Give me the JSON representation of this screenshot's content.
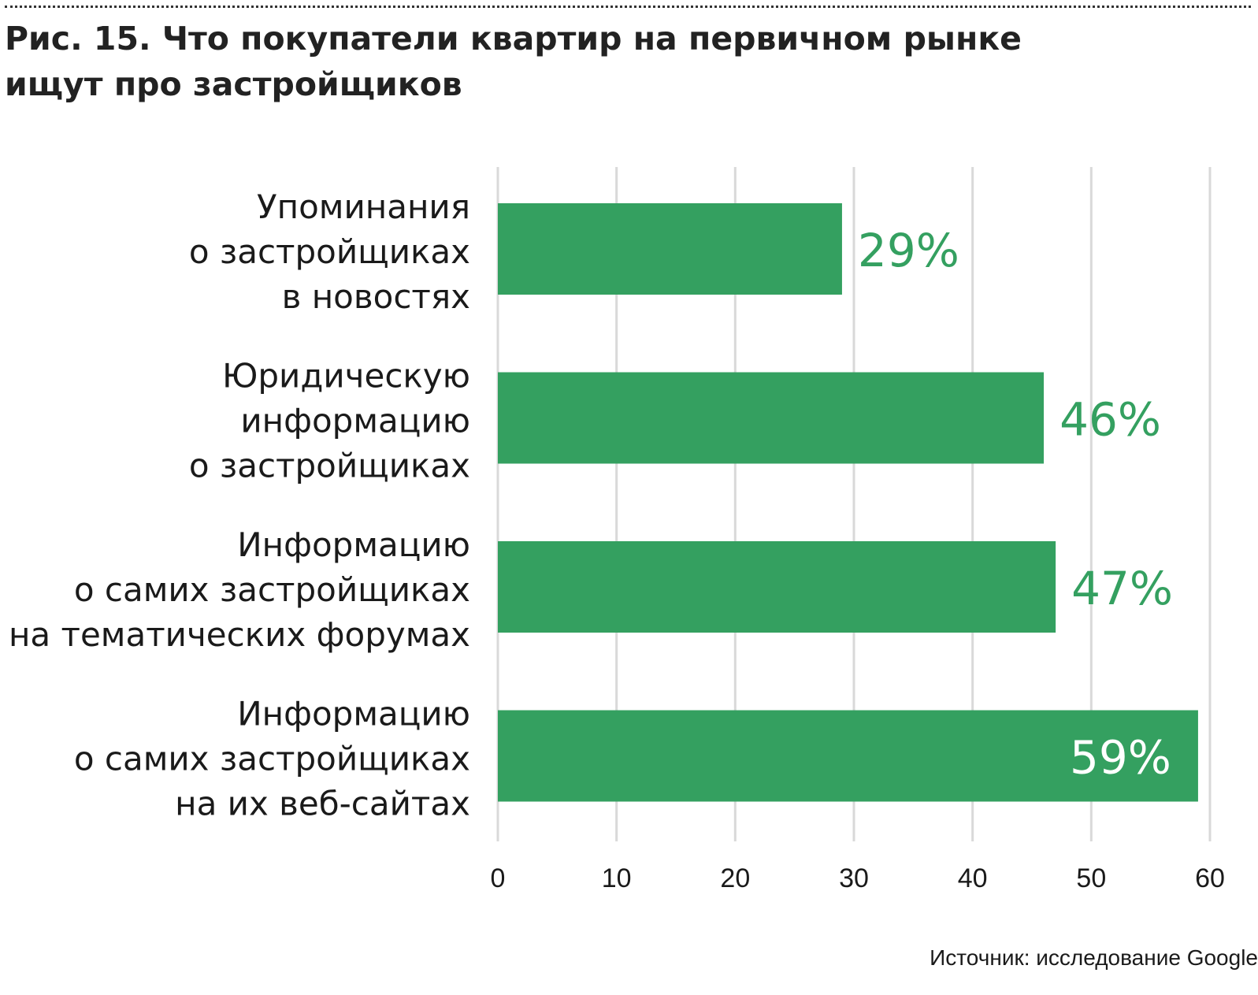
{
  "title_lines": [
    "Рис. 15. Что покупатели квартир на первичном рынке",
    "ищут про застройщиков"
  ],
  "source": "Источник: исследование Google",
  "colors": {
    "bar": "#34a060",
    "grid": "#d9d9d9",
    "axis_text": "#1a1a1a",
    "label_text": "#1a1a1a",
    "value_outside": "#34a060",
    "value_inside": "#ffffff"
  },
  "chart_data": {
    "type": "bar",
    "orientation": "horizontal",
    "categories": [
      [
        "Упоминания",
        "о застройщиках",
        "в новостях"
      ],
      [
        "Юридическую",
        "информацию",
        "о застройщиках"
      ],
      [
        "Информацию",
        "о самих застройщиках",
        "на тематических форумах"
      ],
      [
        "Информацию",
        "о самих застройщиках",
        "на их веб-сайтах"
      ]
    ],
    "values": [
      29,
      46,
      47,
      59
    ],
    "value_labels": [
      "29%",
      "46%",
      "47%",
      "59%"
    ],
    "xlim": [
      0,
      60
    ],
    "xticks": [
      0,
      10,
      20,
      30,
      40,
      50,
      60
    ],
    "grid": true
  }
}
